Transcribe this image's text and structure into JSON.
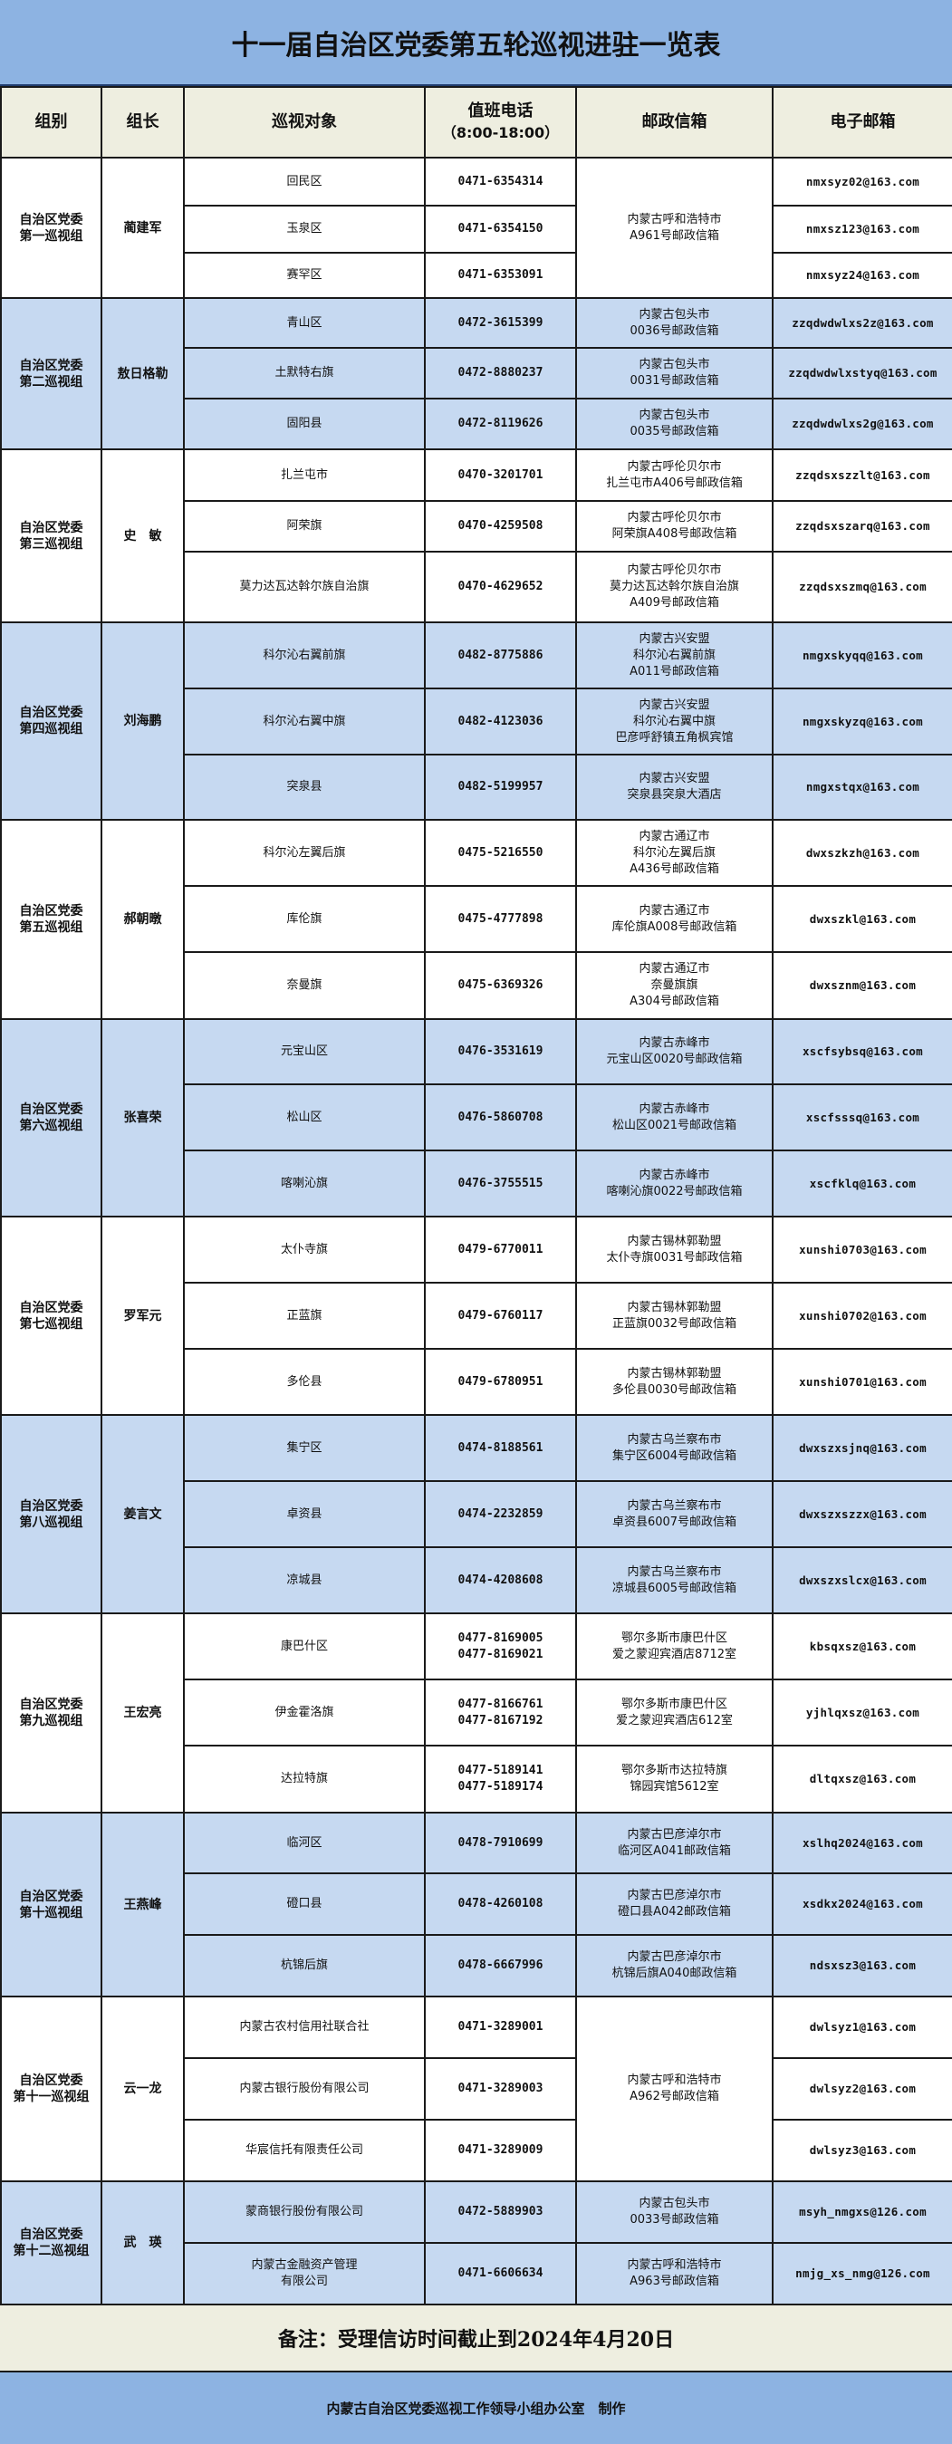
{
  "title": "十一届自治区党委第五轮巡视进驻一览表",
  "colors": {
    "title_bg": "#8db3e2",
    "header_bg": "#eeeee0",
    "alt_group_bg": "#c6d9f1",
    "border": "#1a1a1a"
  },
  "headers": {
    "group": "组别",
    "leader": "组长",
    "target": "巡视对象",
    "phone": "值班电话",
    "phone_hours": "（8:00-18:00）",
    "postbox": "邮政信箱",
    "email": "电子邮箱"
  },
  "groups": [
    {
      "name": [
        "自治区党委",
        "第一巡视组"
      ],
      "leader": "蔺建军",
      "shared_postbox": [
        "内蒙古呼和浩特市",
        "A961号邮政信箱"
      ],
      "rows": [
        {
          "target": [
            "回民区"
          ],
          "phone": [
            "0471-6354314"
          ],
          "email": "nmxsyz02@163.com"
        },
        {
          "target": [
            "玉泉区"
          ],
          "phone": [
            "0471-6354150"
          ],
          "email": "nmxsz123@163.com"
        },
        {
          "target": [
            "赛罕区"
          ],
          "phone": [
            "0471-6353091"
          ],
          "email": "nmxsyz24@163.com"
        }
      ]
    },
    {
      "name": [
        "自治区党委",
        "第二巡视组"
      ],
      "leader": "敖日格勒",
      "rows": [
        {
          "target": [
            "青山区"
          ],
          "phone": [
            "0472-3615399"
          ],
          "postbox": [
            "内蒙古包头市",
            "0036号邮政信箱"
          ],
          "email": "zzqdwdwlxs2z@163.com"
        },
        {
          "target": [
            "土默特右旗"
          ],
          "phone": [
            "0472-8880237"
          ],
          "postbox": [
            "内蒙古包头市",
            "0031号邮政信箱"
          ],
          "email": "zzqdwdwlxstyq@163.com"
        },
        {
          "target": [
            "固阳县"
          ],
          "phone": [
            "0472-8119626"
          ],
          "postbox": [
            "内蒙古包头市",
            "0035号邮政信箱"
          ],
          "email": "zzqdwdwlxs2g@163.com"
        }
      ]
    },
    {
      "name": [
        "自治区党委",
        "第三巡视组"
      ],
      "leader": "史　敏",
      "rows": [
        {
          "target": [
            "扎兰屯市"
          ],
          "phone": [
            "0470-3201701"
          ],
          "postbox": [
            "内蒙古呼伦贝尔市",
            "扎兰屯市A406号邮政信箱"
          ],
          "email": "zzqdsxszzlt@163.com"
        },
        {
          "target": [
            "阿荣旗"
          ],
          "phone": [
            "0470-4259508"
          ],
          "postbox": [
            "内蒙古呼伦贝尔市",
            "阿荣旗A408号邮政信箱"
          ],
          "email": "zzqdsxszarq@163.com"
        },
        {
          "target": [
            "莫力达瓦达斡尔族自治旗"
          ],
          "phone": [
            "0470-4629652"
          ],
          "postbox": [
            "内蒙古呼伦贝尔市",
            "莫力达瓦达斡尔族自治旗",
            "A409号邮政信箱"
          ],
          "email": "zzqdsxszmq@163.com"
        }
      ]
    },
    {
      "name": [
        "自治区党委",
        "第四巡视组"
      ],
      "leader": "刘海鹏",
      "rows": [
        {
          "target": [
            "科尔沁右翼前旗"
          ],
          "phone": [
            "0482-8775886"
          ],
          "postbox": [
            "内蒙古兴安盟",
            "科尔沁右翼前旗",
            "A011号邮政信箱"
          ],
          "email": "nmgxskyqq@163.com"
        },
        {
          "target": [
            "科尔沁右翼中旗"
          ],
          "phone": [
            "0482-4123036"
          ],
          "postbox": [
            "内蒙古兴安盟",
            "科尔沁右翼中旗",
            "巴彦呼舒镇五角枫宾馆"
          ],
          "email": "nmgxskyzq@163.com"
        },
        {
          "target": [
            "突泉县"
          ],
          "phone": [
            "0482-5199957"
          ],
          "postbox": [
            "内蒙古兴安盟",
            "突泉县突泉大酒店"
          ],
          "email": "nmgxstqx@163.com"
        }
      ]
    },
    {
      "name": [
        "自治区党委",
        "第五巡视组"
      ],
      "leader": "郝朝暾",
      "rows": [
        {
          "target": [
            "科尔沁左翼后旗"
          ],
          "phone": [
            "0475-5216550"
          ],
          "postbox": [
            "内蒙古通辽市",
            "科尔沁左翼后旗",
            "A436号邮政信箱"
          ],
          "email": "dwxszkzh@163.com"
        },
        {
          "target": [
            "库伦旗"
          ],
          "phone": [
            "0475-4777898"
          ],
          "postbox": [
            "内蒙古通辽市",
            "库伦旗A008号邮政信箱"
          ],
          "email": "dwxszkl@163.com"
        },
        {
          "target": [
            "奈曼旗"
          ],
          "phone": [
            "0475-6369326"
          ],
          "postbox": [
            "内蒙古通辽市",
            "奈曼旗旗",
            "A304号邮政信箱"
          ],
          "email": "dwxsznm@163.com"
        }
      ]
    },
    {
      "name": [
        "自治区党委",
        "第六巡视组"
      ],
      "leader": "张喜荣",
      "rows": [
        {
          "target": [
            "元宝山区"
          ],
          "phone": [
            "0476-3531619"
          ],
          "postbox": [
            "内蒙古赤峰市",
            "元宝山区0020号邮政信箱"
          ],
          "email": "xscfsybsq@163.com"
        },
        {
          "target": [
            "松山区"
          ],
          "phone": [
            "0476-5860708"
          ],
          "postbox": [
            "内蒙古赤峰市",
            "松山区0021号邮政信箱"
          ],
          "email": "xscfsssq@163.com"
        },
        {
          "target": [
            "喀喇沁旗"
          ],
          "phone": [
            "0476-3755515"
          ],
          "postbox": [
            "内蒙古赤峰市",
            "喀喇沁旗0022号邮政信箱"
          ],
          "email": "xscfklq@163.com"
        }
      ]
    },
    {
      "name": [
        "自治区党委",
        "第七巡视组"
      ],
      "leader": "罗军元",
      "rows": [
        {
          "target": [
            "太仆寺旗"
          ],
          "phone": [
            "0479-6770011"
          ],
          "postbox": [
            "内蒙古锡林郭勒盟",
            "太仆寺旗0031号邮政信箱"
          ],
          "email": "xunshi0703@163.com"
        },
        {
          "target": [
            "正蓝旗"
          ],
          "phone": [
            "0479-6760117"
          ],
          "postbox": [
            "内蒙古锡林郭勒盟",
            "正蓝旗0032号邮政信箱"
          ],
          "email": "xunshi0702@163.com"
        },
        {
          "target": [
            "多伦县"
          ],
          "phone": [
            "0479-6780951"
          ],
          "postbox": [
            "内蒙古锡林郭勒盟",
            "多伦县0030号邮政信箱"
          ],
          "email": "xunshi0701@163.com"
        }
      ]
    },
    {
      "name": [
        "自治区党委",
        "第八巡视组"
      ],
      "leader": "姜言文",
      "rows": [
        {
          "target": [
            "集宁区"
          ],
          "phone": [
            "0474-8188561"
          ],
          "postbox": [
            "内蒙古乌兰察布市",
            "集宁区6004号邮政信箱"
          ],
          "email": "dwxszxsjnq@163.com"
        },
        {
          "target": [
            "卓资县"
          ],
          "phone": [
            "0474-2232859"
          ],
          "postbox": [
            "内蒙古乌兰察布市",
            "卓资县6007号邮政信箱"
          ],
          "email": "dwxszxszzx@163.com"
        },
        {
          "target": [
            "凉城县"
          ],
          "phone": [
            "0474-4208608"
          ],
          "postbox": [
            "内蒙古乌兰察布市",
            "凉城县6005号邮政信箱"
          ],
          "email": "dwxszxslcx@163.com"
        }
      ]
    },
    {
      "name": [
        "自治区党委",
        "第九巡视组"
      ],
      "leader": "王宏亮",
      "rows": [
        {
          "target": [
            "康巴什区"
          ],
          "phone": [
            "0477-8169005",
            "0477-8169021"
          ],
          "postbox": [
            "鄂尔多斯市康巴什区",
            "爱之蒙迎宾酒店8712室"
          ],
          "email": "kbsqxsz@163.com"
        },
        {
          "target": [
            "伊金霍洛旗"
          ],
          "phone": [
            "0477-8166761",
            "0477-8167192"
          ],
          "postbox": [
            "鄂尔多斯市康巴什区",
            "爱之蒙迎宾酒店612室"
          ],
          "email": "yjhlqxsz@163.com"
        },
        {
          "target": [
            "达拉特旗"
          ],
          "phone": [
            "0477-5189141",
            "0477-5189174"
          ],
          "postbox": [
            "鄂尔多斯市达拉特旗",
            "锦园宾馆5612室"
          ],
          "email": "dltqxsz@163.com"
        }
      ]
    },
    {
      "name": [
        "自治区党委",
        "第十巡视组"
      ],
      "leader": "王燕峰",
      "rows": [
        {
          "target": [
            "临河区"
          ],
          "phone": [
            "0478-7910699"
          ],
          "postbox": [
            "内蒙古巴彦淖尔市",
            "临河区A041邮政信箱"
          ],
          "email": "xslhq2024@163.com"
        },
        {
          "target": [
            "磴口县"
          ],
          "phone": [
            "0478-4260108"
          ],
          "postbox": [
            "内蒙古巴彦淖尔市",
            "磴口县A042邮政信箱"
          ],
          "email": "xsdkx2024@163.com"
        },
        {
          "target": [
            "杭锦后旗"
          ],
          "phone": [
            "0478-6667996"
          ],
          "postbox": [
            "内蒙古巴彦淖尔市",
            "杭锦后旗A040邮政信箱"
          ],
          "email": "ndsxsz3@163.com"
        }
      ]
    },
    {
      "name": [
        "自治区党委",
        "第十一巡视组"
      ],
      "leader": "云一龙",
      "shared_postbox": [
        "内蒙古呼和浩特市",
        "A962号邮政信箱"
      ],
      "rows": [
        {
          "target": [
            "内蒙古农村信用社联合社"
          ],
          "phone": [
            "0471-3289001"
          ],
          "email": "dwlsyz1@163.com"
        },
        {
          "target": [
            "内蒙古银行股份有限公司"
          ],
          "phone": [
            "0471-3289003"
          ],
          "email": "dwlsyz2@163.com"
        },
        {
          "target": [
            "华宸信托有限责任公司"
          ],
          "phone": [
            "0471-3289009"
          ],
          "email": "dwlsyz3@163.com"
        }
      ]
    },
    {
      "name": [
        "自治区党委",
        "第十二巡视组"
      ],
      "leader": "武　瑛",
      "rows": [
        {
          "target": [
            "蒙商银行股份有限公司"
          ],
          "phone": [
            "0472-5889903"
          ],
          "postbox": [
            "内蒙古包头市",
            "0033号邮政信箱"
          ],
          "email": "msyh_nmgxs@126.com"
        },
        {
          "target": [
            "内蒙古金融资产管理",
            "有限公司"
          ],
          "phone": [
            "0471-6606634"
          ],
          "postbox": [
            "内蒙古呼和浩特市",
            "A963号邮政信箱"
          ],
          "email": "nmjg_xs_nmg@126.com"
        }
      ]
    }
  ],
  "note": "备注：受理信访时间截止到2024年4月20日",
  "footer": "内蒙古自治区党委巡视工作领导小组办公室　制作"
}
